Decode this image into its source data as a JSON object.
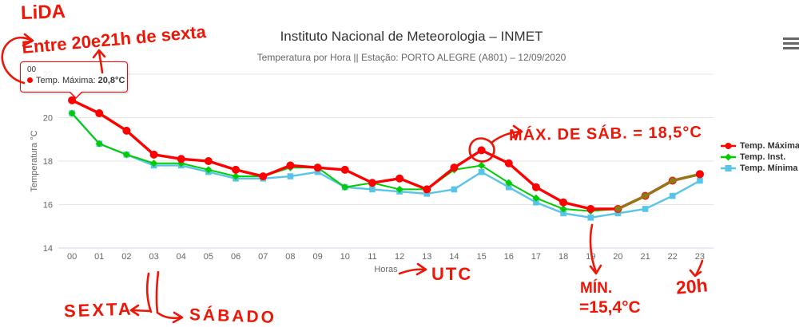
{
  "chart_data": {
    "type": "line",
    "title": "Instituto Nacional de Meteorologia – INMET",
    "subtitle": "Temperatura por Hora || Estação: PORTO ALEGRE (A801) – 12/09/2020",
    "xlabel": "Horas",
    "ylabel": "Temperatura °C",
    "categories": [
      "00",
      "01",
      "02",
      "03",
      "04",
      "05",
      "06",
      "07",
      "08",
      "09",
      "10",
      "11",
      "12",
      "13",
      "14",
      "15",
      "16",
      "17",
      "18",
      "19",
      "20",
      "21",
      "22",
      "23"
    ],
    "y_ticks": [
      14,
      16,
      18,
      20,
      22
    ],
    "ylim": [
      14,
      22.6
    ],
    "grid": true,
    "legend_position": "right",
    "series": [
      {
        "name": "Temp. Máxima",
        "color": "#ff0000",
        "marker": "circle",
        "values": [
          20.8,
          20.2,
          19.4,
          18.3,
          18.1,
          18.0,
          17.6,
          17.3,
          17.8,
          17.7,
          17.6,
          17.0,
          17.2,
          16.7,
          17.7,
          18.5,
          17.9,
          16.8,
          16.1,
          15.8,
          15.8,
          16.4,
          17.1,
          17.4
        ]
      },
      {
        "name": "Temp. Inst.",
        "color": "#00cc00",
        "marker": "diamond",
        "values": [
          20.2,
          18.8,
          18.3,
          17.9,
          17.9,
          17.6,
          17.3,
          17.3,
          17.7,
          17.7,
          16.8,
          17.0,
          16.7,
          16.7,
          17.6,
          17.8,
          17.0,
          16.3,
          15.8,
          15.7,
          15.8,
          16.4,
          17.1,
          17.4
        ]
      },
      {
        "name": "Temp. Mínima",
        "color": "#58c5e8",
        "marker": "square",
        "values": [
          20.2,
          18.8,
          18.3,
          17.8,
          17.8,
          17.5,
          17.2,
          17.2,
          17.3,
          17.5,
          16.8,
          16.7,
          16.6,
          16.5,
          16.7,
          17.5,
          16.8,
          16.1,
          15.6,
          15.4,
          15.6,
          15.8,
          16.4,
          17.1
        ]
      }
    ],
    "overlap_segment": {
      "hours": [
        20,
        21,
        22,
        23
      ],
      "color": "#8c7a14"
    },
    "axis_colors": {
      "gridline": "#e6e6e6",
      "axis_line": "#ccd6eb",
      "tick_label": "#666666"
    }
  },
  "tooltip": {
    "header": "00",
    "series_label": "Temp. Máxima:",
    "value": "20,8°C"
  },
  "annotations": {
    "color": "#ed1607",
    "lida": "LiDA",
    "entre": "Entre 20e21h de sexta",
    "max_sab": "MÁX. DE SÁB. = 18,5°C",
    "utc": "UTC",
    "sexta": "SEXTA",
    "sabado": "SÁBADO",
    "min_line1": "MÍN.",
    "min_line2": "=15,4°C",
    "hour20": "20h"
  }
}
